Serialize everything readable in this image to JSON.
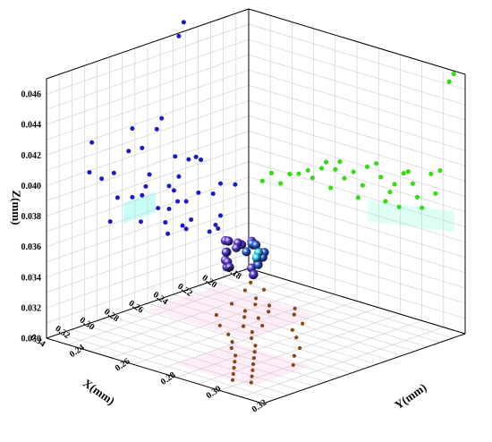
{
  "chart_data": {
    "type": "scatter",
    "projection": "3d",
    "title": "",
    "xlabel": "X(mm)",
    "ylabel": "Y(mm)",
    "zlabel": "Z(mm)",
    "xlim": [
      0.175,
      0.34
    ],
    "ylim": [
      0.23,
      0.325
    ],
    "zlim": [
      0.03,
      0.047
    ],
    "x_ticks": [
      "0.18",
      "0.20",
      "0.22",
      "0.24",
      "0.26",
      "0.28",
      "0.30",
      "0.32",
      "0.34"
    ],
    "y_ticks": [
      "0.24",
      "0.26",
      "0.28",
      "0.30",
      "0.32"
    ],
    "z_ticks": [
      "0.030",
      "0.032",
      "0.034",
      "0.036",
      "0.038",
      "0.040",
      "0.042",
      "0.044",
      "0.046"
    ],
    "grid": true,
    "legend": "none",
    "colors": {
      "xz_projection": "#1a1acc",
      "yz_projection": "#33dd11",
      "xy_projection": "#8b4513",
      "points_low": "#5533cc",
      "points_mid": "#2255cc",
      "points_high": "#22ccee",
      "points_top": "#ee2222",
      "points_green": "#22cc22",
      "grid": "#cccccc",
      "xy_highlight": "#ffccee",
      "xz_highlight": "#99ffee",
      "yz_highlight": "#bbffee"
    },
    "points_3d": [
      {
        "x": 0.19,
        "y": 0.235,
        "z": 0.0322
      },
      {
        "x": 0.195,
        "y": 0.236,
        "z": 0.0325
      },
      {
        "x": 0.2,
        "y": 0.238,
        "z": 0.0324
      },
      {
        "x": 0.21,
        "y": 0.24,
        "z": 0.0332
      },
      {
        "x": 0.222,
        "y": 0.245,
        "z": 0.0338
      },
      {
        "x": 0.225,
        "y": 0.248,
        "z": 0.034
      },
      {
        "x": 0.23,
        "y": 0.25,
        "z": 0.0335
      },
      {
        "x": 0.235,
        "y": 0.252,
        "z": 0.0332
      },
      {
        "x": 0.24,
        "y": 0.255,
        "z": 0.034
      },
      {
        "x": 0.245,
        "y": 0.258,
        "z": 0.0333
      },
      {
        "x": 0.248,
        "y": 0.26,
        "z": 0.0338
      },
      {
        "x": 0.25,
        "y": 0.262,
        "z": 0.0336
      },
      {
        "x": 0.232,
        "y": 0.262,
        "z": 0.0348
      },
      {
        "x": 0.238,
        "y": 0.266,
        "z": 0.035
      },
      {
        "x": 0.242,
        "y": 0.268,
        "z": 0.0351
      },
      {
        "x": 0.255,
        "y": 0.272,
        "z": 0.0352
      },
      {
        "x": 0.262,
        "y": 0.278,
        "z": 0.0346
      },
      {
        "x": 0.268,
        "y": 0.282,
        "z": 0.0345
      },
      {
        "x": 0.275,
        "y": 0.286,
        "z": 0.0349
      },
      {
        "x": 0.258,
        "y": 0.276,
        "z": 0.036
      },
      {
        "x": 0.262,
        "y": 0.28,
        "z": 0.0362
      },
      {
        "x": 0.266,
        "y": 0.284,
        "z": 0.036
      },
      {
        "x": 0.27,
        "y": 0.288,
        "z": 0.0363
      },
      {
        "x": 0.275,
        "y": 0.29,
        "z": 0.0362
      },
      {
        "x": 0.283,
        "y": 0.292,
        "z": 0.0362
      },
      {
        "x": 0.29,
        "y": 0.296,
        "z": 0.0364
      },
      {
        "x": 0.286,
        "y": 0.294,
        "z": 0.037
      },
      {
        "x": 0.295,
        "y": 0.298,
        "z": 0.0371
      }
    ],
    "xz_projection": [
      {
        "x": 0.186,
        "z": 0.0358
      },
      {
        "x": 0.198,
        "z": 0.0362
      },
      {
        "x": 0.204,
        "z": 0.0357
      },
      {
        "x": 0.216,
        "z": 0.0361
      },
      {
        "x": 0.198,
        "z": 0.0341
      },
      {
        "x": 0.2,
        "z": 0.0333
      },
      {
        "x": 0.207,
        "z": 0.0333
      },
      {
        "x": 0.202,
        "z": 0.0336
      },
      {
        "x": 0.222,
        "z": 0.0345
      },
      {
        "x": 0.226,
        "z": 0.034
      },
      {
        "x": 0.229,
        "z": 0.0343
      },
      {
        "x": 0.241,
        "z": 0.0341
      },
      {
        "x": 0.243,
        "z": 0.0349
      },
      {
        "x": 0.226,
        "z": 0.0358
      },
      {
        "x": 0.233,
        "z": 0.036
      },
      {
        "x": 0.24,
        "z": 0.0357
      },
      {
        "x": 0.249,
        "z": 0.036
      },
      {
        "x": 0.263,
        "z": 0.0355
      },
      {
        "x": 0.214,
        "z": 0.0382
      },
      {
        "x": 0.218,
        "z": 0.0385
      },
      {
        "x": 0.224,
        "z": 0.0385
      },
      {
        "x": 0.235,
        "z": 0.039
      },
      {
        "x": 0.232,
        "z": 0.0376
      },
      {
        "x": 0.24,
        "z": 0.0372
      },
      {
        "x": 0.236,
        "z": 0.0368
      },
      {
        "x": 0.256,
        "z": 0.0384
      },
      {
        "x": 0.259,
        "z": 0.0377
      },
      {
        "x": 0.262,
        "z": 0.0372
      },
      {
        "x": 0.27,
        "z": 0.0373
      },
      {
        "x": 0.282,
        "z": 0.0376
      },
      {
        "x": 0.288,
        "z": 0.0362
      },
      {
        "x": 0.246,
        "z": 0.0418
      },
      {
        "x": 0.27,
        "z": 0.0418
      },
      {
        "x": 0.25,
        "z": 0.0412
      },
      {
        "x": 0.262,
        "z": 0.0403
      },
      {
        "x": 0.273,
        "z": 0.0404
      },
      {
        "x": 0.303,
        "z": 0.0418
      },
      {
        "x": 0.285,
        "z": 0.0393
      },
      {
        "x": 0.228,
        "z": 0.0476
      },
      {
        "x": 0.232,
        "z": 0.0468
      },
      {
        "x": 0.305,
        "z": 0.0399
      },
      {
        "x": 0.295,
        "z": 0.0392
      }
    ],
    "yz_projection": [
      {
        "y": 0.236,
        "z": 0.036
      },
      {
        "y": 0.24,
        "z": 0.0367
      },
      {
        "y": 0.244,
        "z": 0.0362
      },
      {
        "y": 0.248,
        "z": 0.037
      },
      {
        "y": 0.252,
        "z": 0.0372
      },
      {
        "y": 0.256,
        "z": 0.0376
      },
      {
        "y": 0.258,
        "z": 0.0372
      },
      {
        "y": 0.262,
        "z": 0.038
      },
      {
        "y": 0.264,
        "z": 0.0385
      },
      {
        "y": 0.268,
        "z": 0.0382
      },
      {
        "y": 0.27,
        "z": 0.0388
      },
      {
        "y": 0.272,
        "z": 0.0378
      },
      {
        "y": 0.276,
        "z": 0.0384
      },
      {
        "y": 0.28,
        "z": 0.0377
      },
      {
        "y": 0.282,
        "z": 0.039
      },
      {
        "y": 0.286,
        "z": 0.0394
      },
      {
        "y": 0.288,
        "z": 0.0386
      },
      {
        "y": 0.292,
        "z": 0.0378
      },
      {
        "y": 0.294,
        "z": 0.0384
      },
      {
        "y": 0.298,
        "z": 0.0393
      },
      {
        "y": 0.3,
        "z": 0.0395
      },
      {
        "y": 0.302,
        "z": 0.0388
      },
      {
        "y": 0.306,
        "z": 0.0374
      },
      {
        "y": 0.31,
        "z": 0.0398
      },
      {
        "y": 0.314,
        "z": 0.0402
      },
      {
        "y": 0.266,
        "z": 0.0369
      },
      {
        "y": 0.278,
        "z": 0.0368
      },
      {
        "y": 0.29,
        "z": 0.0371
      },
      {
        "y": 0.296,
        "z": 0.037
      },
      {
        "y": 0.318,
        "z": 0.0462
      },
      {
        "y": 0.32,
        "z": 0.0468
      },
      {
        "y": 0.304,
        "z": 0.038
      },
      {
        "y": 0.312,
        "z": 0.0386
      }
    ],
    "xy_projection": [
      {
        "x": 0.192,
        "y": 0.24
      },
      {
        "x": 0.196,
        "y": 0.248
      },
      {
        "x": 0.204,
        "y": 0.244
      },
      {
        "x": 0.21,
        "y": 0.252
      },
      {
        "x": 0.214,
        "y": 0.26
      },
      {
        "x": 0.218,
        "y": 0.256
      },
      {
        "x": 0.222,
        "y": 0.264
      },
      {
        "x": 0.226,
        "y": 0.25
      },
      {
        "x": 0.23,
        "y": 0.258
      },
      {
        "x": 0.234,
        "y": 0.266
      },
      {
        "x": 0.238,
        "y": 0.262
      },
      {
        "x": 0.242,
        "y": 0.272
      },
      {
        "x": 0.246,
        "y": 0.254
      },
      {
        "x": 0.25,
        "y": 0.268
      },
      {
        "x": 0.254,
        "y": 0.274
      },
      {
        "x": 0.258,
        "y": 0.262
      },
      {
        "x": 0.262,
        "y": 0.278
      },
      {
        "x": 0.266,
        "y": 0.27
      },
      {
        "x": 0.27,
        "y": 0.284
      },
      {
        "x": 0.274,
        "y": 0.276
      },
      {
        "x": 0.278,
        "y": 0.288
      },
      {
        "x": 0.282,
        "y": 0.28
      },
      {
        "x": 0.286,
        "y": 0.292
      },
      {
        "x": 0.29,
        "y": 0.286
      },
      {
        "x": 0.294,
        "y": 0.296
      },
      {
        "x": 0.298,
        "y": 0.29
      },
      {
        "x": 0.302,
        "y": 0.3
      },
      {
        "x": 0.306,
        "y": 0.294
      },
      {
        "x": 0.31,
        "y": 0.304
      },
      {
        "x": 0.314,
        "y": 0.298
      },
      {
        "x": 0.318,
        "y": 0.308
      },
      {
        "x": 0.322,
        "y": 0.302
      },
      {
        "x": 0.208,
        "y": 0.268
      },
      {
        "x": 0.216,
        "y": 0.272
      },
      {
        "x": 0.224,
        "y": 0.28
      },
      {
        "x": 0.236,
        "y": 0.282
      },
      {
        "x": 0.244,
        "y": 0.288
      },
      {
        "x": 0.256,
        "y": 0.296
      },
      {
        "x": 0.268,
        "y": 0.3
      },
      {
        "x": 0.28,
        "y": 0.306
      }
    ]
  }
}
